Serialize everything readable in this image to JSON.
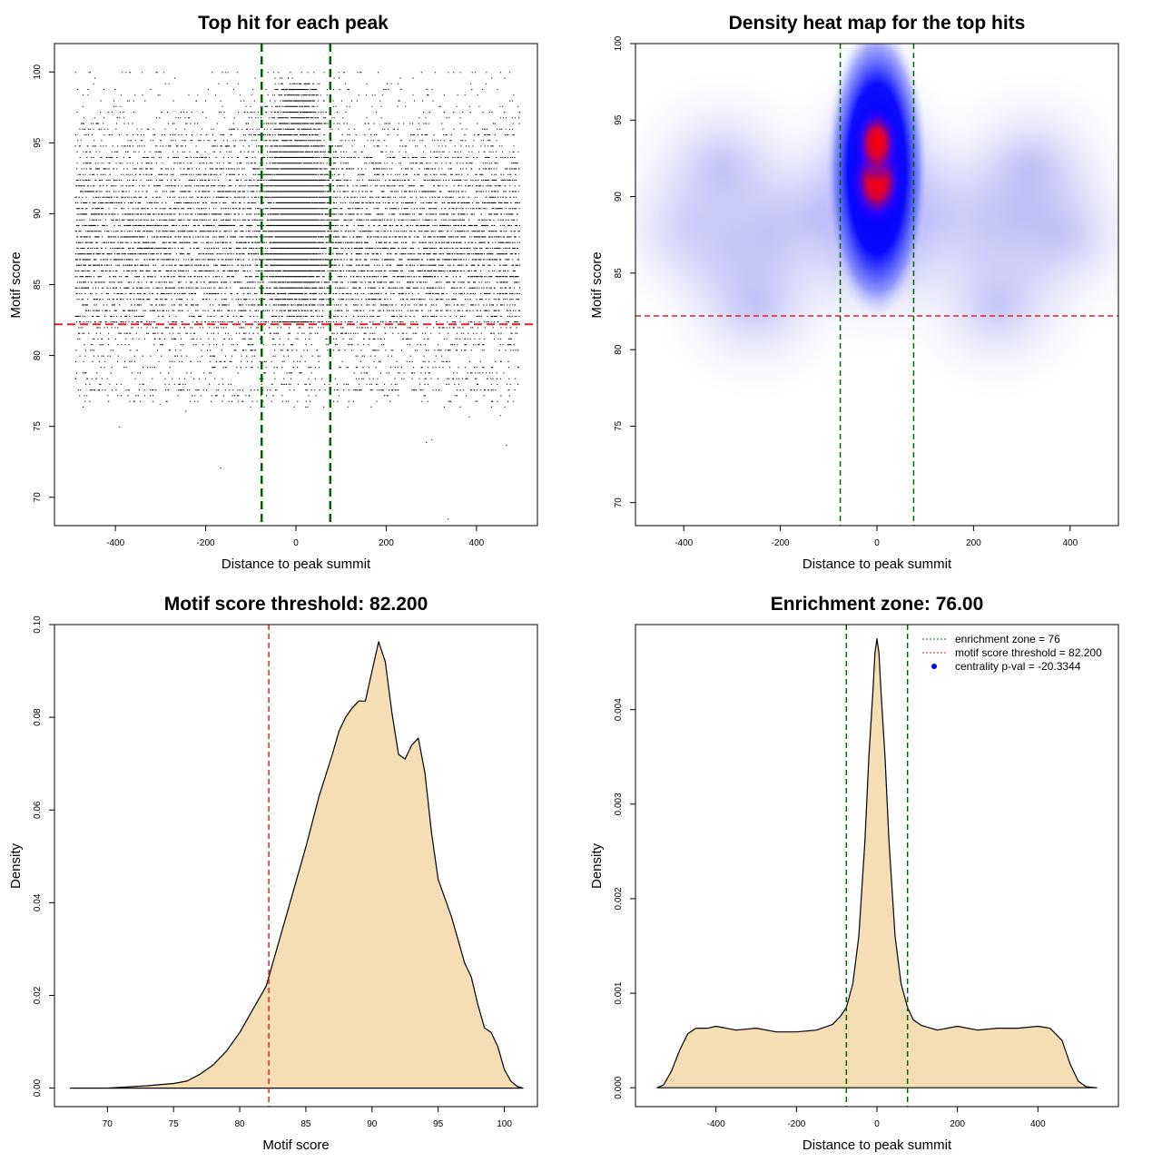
{
  "colors": {
    "axis": "#000000",
    "zone_line": "#006400",
    "threshold_line": "#dd2222",
    "density_fill": "#f5deb3",
    "points": "#000000",
    "heat_low": "#ffffff",
    "heat_mid": "#0000ff",
    "heat_high": "#ff0000"
  },
  "legend": {
    "zone": "enrichment zone = 76",
    "threshold": "motif score threshold = 82.200",
    "pval": "centrality p-val = -20.3344"
  },
  "chart_data": [
    {
      "type": "scatter",
      "title": "Top hit for each peak",
      "xlabel": "Distance to peak summit",
      "ylabel": "Motif score",
      "xlim": [
        -535,
        535
      ],
      "ylim": [
        68,
        102
      ],
      "xticks": [
        -400,
        -200,
        0,
        200,
        400
      ],
      "yticks": [
        70,
        75,
        80,
        85,
        90,
        95,
        100
      ],
      "x_ticklabels": [
        "-400",
        "-200",
        "0",
        "200",
        "400"
      ],
      "y_ticklabels": [
        "70",
        "75",
        "80",
        "85",
        "90",
        "95",
        "100"
      ],
      "vlines": [
        -76,
        76
      ],
      "hline": 82.2,
      "point_x_range": [
        -490,
        495
      ],
      "central_cluster_center": [
        0,
        89
      ],
      "outliers": [
        [
          -392,
          75.0
        ],
        [
          -168,
          72.1
        ],
        [
          336,
          68.5
        ],
        [
          300,
          74.1
        ],
        [
          288,
          73.9
        ],
        [
          452,
          75.8
        ],
        [
          465,
          73.7
        ],
        [
          383,
          75.7
        ],
        [
          -302,
          76.6
        ],
        [
          -245,
          76.1
        ]
      ]
    },
    {
      "type": "heatmap",
      "title": "Density heat map for the top hits",
      "xlabel": "Distance to peak summit",
      "ylabel": "Motif score",
      "xlim": [
        -500,
        500
      ],
      "ylim": [
        68.5,
        100
      ],
      "xticks": [
        -400,
        -200,
        0,
        200,
        400
      ],
      "yticks": [
        70,
        75,
        80,
        85,
        90,
        95,
        100
      ],
      "x_ticklabels": [
        "-400",
        "-200",
        "0",
        "200",
        "400"
      ],
      "y_ticklabels": [
        "70",
        "75",
        "80",
        "85",
        "90",
        "95",
        "100"
      ],
      "vlines": [
        -76,
        76
      ],
      "hline": 82.2,
      "hotspots": [
        [
          0,
          91.0,
          1.0
        ],
        [
          0,
          93.5,
          0.85
        ]
      ]
    },
    {
      "type": "area",
      "title": "Motif score threshold: 82.200",
      "xlabel": "Motif score",
      "ylabel": "Density",
      "xlim": [
        66.0,
        102.5
      ],
      "ylim": [
        -0.004,
        0.1
      ],
      "xticks": [
        70,
        75,
        80,
        85,
        90,
        95,
        100
      ],
      "yticks": [
        0.0,
        0.02,
        0.04,
        0.06,
        0.08,
        0.1
      ],
      "x_ticklabels": [
        "70",
        "75",
        "80",
        "85",
        "90",
        "95",
        "100"
      ],
      "y_ticklabels": [
        "0.00",
        "0.02",
        "0.04",
        "0.06",
        "0.08",
        "0.10"
      ],
      "vline": 82.2,
      "x": [
        67.2,
        70,
        73,
        75,
        76,
        77,
        78,
        79,
        80,
        81,
        82,
        83,
        84,
        85,
        86,
        87,
        87.5,
        88,
        88.5,
        89,
        89.5,
        90,
        90.5,
        91,
        91.5,
        92,
        92.5,
        93,
        93.5,
        94,
        94.5,
        95,
        96,
        97,
        97.5,
        98,
        98.5,
        99,
        99.5,
        100,
        100.5,
        101,
        101.4
      ],
      "y": [
        0.0,
        0.0,
        0.0005,
        0.001,
        0.0015,
        0.003,
        0.005,
        0.008,
        0.012,
        0.017,
        0.022,
        0.032,
        0.042,
        0.052,
        0.063,
        0.072,
        0.077,
        0.08,
        0.082,
        0.0835,
        0.0835,
        0.09,
        0.0963,
        0.092,
        0.081,
        0.072,
        0.071,
        0.074,
        0.0755,
        0.068,
        0.055,
        0.045,
        0.037,
        0.027,
        0.024,
        0.018,
        0.013,
        0.012,
        0.009,
        0.004,
        0.0015,
        0.0003,
        0.0
      ]
    },
    {
      "type": "area",
      "title": "Enrichment zone: 76.00",
      "xlabel": "Distance to peak summit",
      "ylabel": "Density",
      "xlim": [
        -600,
        600
      ],
      "ylim": [
        -0.0002,
        0.0049
      ],
      "xticks": [
        -400,
        -200,
        0,
        200,
        400
      ],
      "yticks": [
        0.0,
        0.001,
        0.002,
        0.003,
        0.004
      ],
      "x_ticklabels": [
        "-400",
        "-200",
        "0",
        "200",
        "400"
      ],
      "y_ticklabels": [
        "0.000",
        "0.001",
        "0.002",
        "0.003",
        "0.004"
      ],
      "vlines": [
        -76,
        76
      ],
      "x": [
        -546,
        -530,
        -510,
        -490,
        -470,
        -450,
        -420,
        -400,
        -350,
        -300,
        -250,
        -200,
        -150,
        -110,
        -90,
        -76,
        -60,
        -45,
        -30,
        -20,
        -10,
        -5,
        0,
        5,
        10,
        20,
        30,
        45,
        60,
        76,
        90,
        110,
        150,
        200,
        250,
        300,
        350,
        400,
        430,
        460,
        480,
        500,
        520,
        546
      ],
      "y": [
        0.0,
        3e-05,
        0.00018,
        0.0004,
        0.00057,
        0.00063,
        0.00063,
        0.00065,
        0.00061,
        0.00063,
        0.00059,
        0.00059,
        0.00061,
        0.00067,
        0.00076,
        0.00085,
        0.0011,
        0.0016,
        0.0026,
        0.0035,
        0.0042,
        0.0046,
        0.00475,
        0.0046,
        0.0042,
        0.0035,
        0.0026,
        0.0016,
        0.0011,
        0.00085,
        0.00072,
        0.00066,
        0.00061,
        0.00065,
        0.00061,
        0.00063,
        0.00063,
        0.00065,
        0.00063,
        0.0005,
        0.00025,
        7e-05,
        1e-05,
        0.0
      ],
      "legend": [
        "enrichment zone = 76",
        "motif score threshold = 82.200",
        "centrality p-val = -20.3344"
      ]
    }
  ]
}
